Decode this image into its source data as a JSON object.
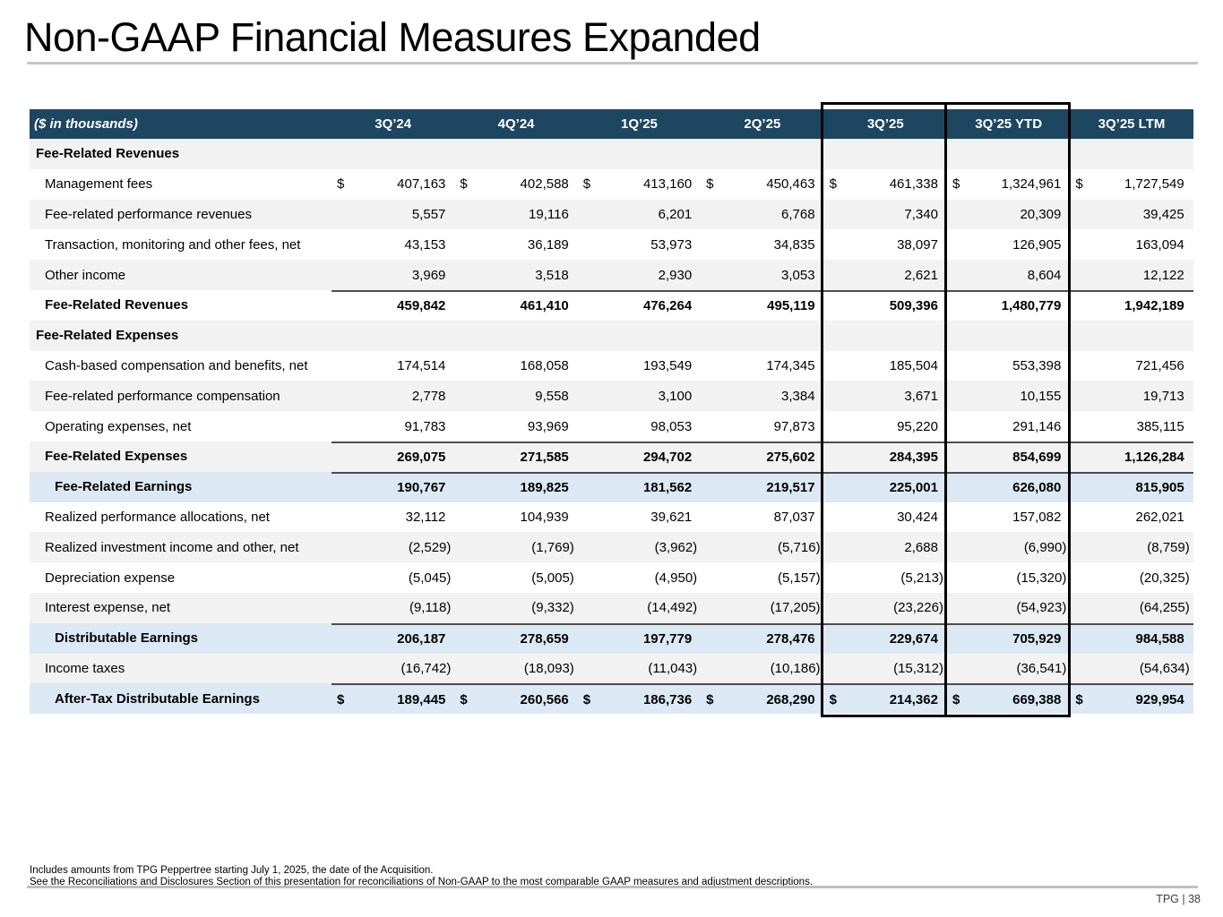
{
  "page": {
    "title": "Non-GAAP Financial Measures Expanded",
    "footnotes": [
      "Includes amounts from TPG Peppertree starting July 1, 2025, the date of the Acquisition.",
      "See the Reconciliations and Disclosures Section of this presentation for reconciliations of Non-GAAP to the most comparable GAAP measures and adjustment descriptions."
    ],
    "footer_text": "TPG | 38"
  },
  "colors": {
    "header_bg": "#1d4660",
    "stripe_gray": "#f2f2f2",
    "highlight_blue": "#dce9f5",
    "total_rule": "#4d4d4d",
    "highlight_box_border": "#000000"
  },
  "table": {
    "unit_label": "($ in thousands)",
    "columns": [
      "3Q’24",
      "4Q’24",
      "1Q’25",
      "2Q’25",
      "3Q’25",
      "3Q’25 YTD",
      "3Q’25 LTM"
    ],
    "highlighted_columns": [
      "3Q’25",
      "3Q’25 YTD"
    ],
    "rows": [
      {
        "label": "Fee-Related Revenues",
        "type": "section",
        "shade": "gray",
        "dollar": false,
        "border_top": false,
        "values": []
      },
      {
        "label": "Management fees",
        "type": "item",
        "shade": "white",
        "dollar": true,
        "border_top": false,
        "values": [
          "407,163",
          "402,588",
          "413,160",
          "450,463",
          "461,338",
          "1,324,961",
          "1,727,549"
        ]
      },
      {
        "label": "Fee-related performance revenues",
        "type": "item",
        "shade": "gray",
        "dollar": false,
        "border_top": false,
        "values": [
          "5,557",
          "19,116",
          "6,201",
          "6,768",
          "7,340",
          "20,309",
          "39,425"
        ]
      },
      {
        "label": "Transaction, monitoring and other fees, net",
        "type": "item",
        "shade": "white",
        "dollar": false,
        "border_top": false,
        "values": [
          "43,153",
          "36,189",
          "53,973",
          "34,835",
          "38,097",
          "126,905",
          "163,094"
        ]
      },
      {
        "label": "Other income",
        "type": "item",
        "shade": "gray",
        "dollar": false,
        "border_top": false,
        "values": [
          "3,969",
          "3,518",
          "2,930",
          "3,053",
          "2,621",
          "8,604",
          "12,122"
        ]
      },
      {
        "label": "Fee-Related Revenues",
        "type": "total",
        "shade": "white",
        "dollar": false,
        "border_top": true,
        "values": [
          "459,842",
          "461,410",
          "476,264",
          "495,119",
          "509,396",
          "1,480,779",
          "1,942,189"
        ]
      },
      {
        "label": "Fee-Related Expenses",
        "type": "section",
        "shade": "gray",
        "dollar": false,
        "border_top": false,
        "values": []
      },
      {
        "label": "Cash-based compensation and benefits, net",
        "type": "item",
        "shade": "white",
        "dollar": false,
        "border_top": false,
        "values": [
          "174,514",
          "168,058",
          "193,549",
          "174,345",
          "185,504",
          "553,398",
          "721,456"
        ]
      },
      {
        "label": "Fee-related performance compensation",
        "type": "item",
        "shade": "gray",
        "dollar": false,
        "border_top": false,
        "values": [
          "2,778",
          "9,558",
          "3,100",
          "3,384",
          "3,671",
          "10,155",
          "19,713"
        ]
      },
      {
        "label": "Operating expenses, net",
        "type": "item",
        "shade": "white",
        "dollar": false,
        "border_top": false,
        "values": [
          "91,783",
          "93,969",
          "98,053",
          "97,873",
          "95,220",
          "291,146",
          "385,115"
        ]
      },
      {
        "label": "Fee-Related Expenses",
        "type": "total",
        "shade": "gray",
        "dollar": false,
        "border_top": true,
        "values": [
          "269,075",
          "271,585",
          "294,702",
          "275,602",
          "284,395",
          "854,699",
          "1,126,284"
        ]
      },
      {
        "label": "Fee-Related Earnings",
        "type": "earnings",
        "shade": "blue",
        "dollar": false,
        "border_top": true,
        "values": [
          "190,767",
          "189,825",
          "181,562",
          "219,517",
          "225,001",
          "626,080",
          "815,905"
        ]
      },
      {
        "label": "Realized performance allocations, net",
        "type": "item",
        "shade": "white",
        "dollar": false,
        "border_top": false,
        "values": [
          "32,112",
          "104,939",
          "39,621",
          "87,037",
          "30,424",
          "157,082",
          "262,021"
        ]
      },
      {
        "label": "Realized investment income and other, net",
        "type": "item",
        "shade": "gray",
        "dollar": false,
        "border_top": false,
        "values": [
          "(2,529)",
          "(1,769)",
          "(3,962)",
          "(5,716)",
          "2,688",
          "(6,990)",
          "(8,759)"
        ]
      },
      {
        "label": "Depreciation expense",
        "type": "item",
        "shade": "white",
        "dollar": false,
        "border_top": false,
        "values": [
          "(5,045)",
          "(5,005)",
          "(4,950)",
          "(5,157)",
          "(5,213)",
          "(15,320)",
          "(20,325)"
        ]
      },
      {
        "label": "Interest expense, net",
        "type": "item",
        "shade": "gray",
        "dollar": false,
        "border_top": false,
        "values": [
          "(9,118)",
          "(9,332)",
          "(14,492)",
          "(17,205)",
          "(23,226)",
          "(54,923)",
          "(64,255)"
        ]
      },
      {
        "label": "Distributable Earnings",
        "type": "earnings",
        "shade": "blue",
        "dollar": false,
        "border_top": true,
        "values": [
          "206,187",
          "278,659",
          "197,779",
          "278,476",
          "229,674",
          "705,929",
          "984,588"
        ]
      },
      {
        "label": "Income taxes",
        "type": "item",
        "shade": "gray",
        "dollar": false,
        "border_top": false,
        "values": [
          "(16,742)",
          "(18,093)",
          "(11,043)",
          "(10,186)",
          "(15,312)",
          "(36,541)",
          "(54,634)"
        ]
      },
      {
        "label": "After-Tax Distributable Earnings",
        "type": "earnings",
        "shade": "blue",
        "dollar": true,
        "border_top": true,
        "values": [
          "189,445",
          "260,566",
          "186,736",
          "268,290",
          "214,362",
          "669,388",
          "929,954"
        ]
      }
    ]
  }
}
